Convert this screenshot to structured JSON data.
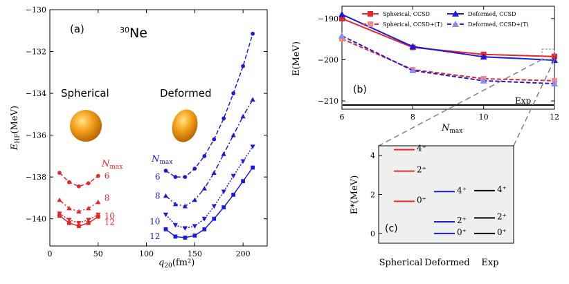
{
  "colors": {
    "red": "#e8262a",
    "blue": "#1a1adb",
    "lightred": "#f28b8b",
    "lightblue": "#8c8cf0",
    "black": "#000000",
    "grey": "#7a7a7a"
  },
  "chart_data": [
    {
      "id": "a",
      "type": "line",
      "panel_label": "(a)",
      "title_mass": "30",
      "title_element": "Ne",
      "xlabel": "q₂₀(fm²)",
      "ylabel": "E_HF(MeV)",
      "ylabel_main": "E",
      "ylabel_sub": "HF",
      "ylabel_unit": "(MeV)",
      "xlabel_main": "q",
      "xlabel_sub": "20",
      "xlabel_unit": "(fm²)",
      "xlim": [
        0,
        225
      ],
      "ylim": [
        -141.3,
        -130
      ],
      "x_ticks": [
        0,
        50,
        100,
        150,
        200
      ],
      "x_tick_labels": [
        "0",
        "50",
        "100",
        "150",
        "200"
      ],
      "y_ticks": [
        -140,
        -138,
        -136,
        -134,
        -132,
        -130
      ],
      "y_tick_labels": [
        "−140",
        "−138",
        "−136",
        "−134",
        "−132",
        "−130"
      ],
      "annotations": {
        "spherical": "Spherical",
        "deformed": "Deformed",
        "nmax_main": "N",
        "nmax_sub": "max"
      },
      "series": [
        {
          "name": "Spherical Nmax=6",
          "group": "spherical",
          "nmax": "6",
          "color": "red",
          "marker": "circle",
          "dash": "dashed",
          "x": [
            10,
            20,
            30,
            40,
            50
          ],
          "y": [
            -137.8,
            -138.25,
            -138.45,
            -138.3,
            -137.95
          ]
        },
        {
          "name": "Spherical Nmax=8",
          "group": "spherical",
          "nmax": "8",
          "color": "red",
          "marker": "triangle-up",
          "dash": "dashdot",
          "x": [
            10,
            20,
            30,
            40,
            50
          ],
          "y": [
            -139.1,
            -139.5,
            -139.65,
            -139.5,
            -139.2
          ]
        },
        {
          "name": "Spherical Nmax=10",
          "group": "spherical",
          "nmax": "10",
          "color": "red",
          "marker": "triangle-down",
          "dash": "dotted",
          "x": [
            10,
            20,
            30,
            40,
            50
          ],
          "y": [
            -139.75,
            -140.05,
            -140.2,
            -140.05,
            -139.8
          ]
        },
        {
          "name": "Spherical Nmax=12",
          "group": "spherical",
          "nmax": "12",
          "color": "red",
          "marker": "square",
          "dash": "solid",
          "x": [
            10,
            20,
            30,
            40,
            50
          ],
          "y": [
            -139.85,
            -140.2,
            -140.35,
            -140.2,
            -139.9
          ]
        },
        {
          "name": "Deformed Nmax=6",
          "group": "deformed",
          "nmax": "6",
          "color": "blue",
          "marker": "circle",
          "dash": "dashed",
          "x": [
            120,
            130,
            140,
            150,
            160,
            170,
            180,
            190,
            200,
            210
          ],
          "y": [
            -137.7,
            -138.0,
            -138.0,
            -137.6,
            -137.0,
            -136.2,
            -135.2,
            -134.0,
            -132.7,
            -131.15
          ]
        },
        {
          "name": "Deformed Nmax=8",
          "group": "deformed",
          "nmax": "8",
          "color": "blue",
          "marker": "triangle-up",
          "dash": "dashdot",
          "x": [
            120,
            130,
            140,
            150,
            160,
            170,
            180,
            190,
            200,
            210
          ],
          "y": [
            -138.9,
            -139.3,
            -139.4,
            -139.1,
            -138.55,
            -137.8,
            -136.9,
            -136.0,
            -135.1,
            -134.3
          ]
        },
        {
          "name": "Deformed Nmax=10",
          "group": "deformed",
          "nmax": "10",
          "color": "blue",
          "marker": "triangle-down",
          "dash": "dotted",
          "x": [
            120,
            130,
            140,
            150,
            160,
            170,
            180,
            190,
            200,
            210
          ],
          "y": [
            -139.8,
            -140.3,
            -140.45,
            -140.35,
            -140.0,
            -139.4,
            -138.7,
            -137.95,
            -137.25,
            -136.55
          ]
        },
        {
          "name": "Deformed Nmax=12",
          "group": "deformed",
          "nmax": "12",
          "color": "blue",
          "marker": "square",
          "dash": "solid",
          "x": [
            120,
            130,
            140,
            150,
            160,
            170,
            180,
            190,
            200,
            210
          ],
          "y": [
            -140.5,
            -140.85,
            -140.9,
            -140.8,
            -140.5,
            -140.0,
            -139.45,
            -138.85,
            -138.2,
            -137.55
          ]
        }
      ]
    },
    {
      "id": "b",
      "type": "line",
      "panel_label": "(b)",
      "xlabel": "N_max",
      "xlabel_main": "N",
      "xlabel_sub": "max",
      "ylabel": "E(MeV)",
      "xlim": [
        6,
        12
      ],
      "ylim": [
        -212,
        -187
      ],
      "x_ticks": [
        6,
        8,
        10,
        12
      ],
      "x_tick_labels": [
        "6",
        "8",
        "10",
        "12"
      ],
      "y_ticks": [
        -210,
        -200,
        -190
      ],
      "y_tick_labels": [
        "−210",
        "−200",
        "−190"
      ],
      "exp_label": "Exp",
      "exp_value": -211,
      "legend_position": "top",
      "series": [
        {
          "name": "Spherical, CCSD",
          "color": "red",
          "marker": "square",
          "dash": "solid",
          "x": [
            6,
            8,
            10,
            12
          ],
          "y": [
            -190,
            -197,
            -198.7,
            -199.2
          ]
        },
        {
          "name": "Deformed, CCSD",
          "color": "blue",
          "marker": "triangle-up",
          "dash": "solid",
          "x": [
            6,
            8,
            10,
            12
          ],
          "y": [
            -189,
            -196.8,
            -199.3,
            -200.1
          ]
        },
        {
          "name": "Spherical, CCSD+(T)",
          "color": "lightred",
          "marker": "square",
          "dash": "dashed",
          "x": [
            6,
            8,
            10,
            12
          ],
          "y": [
            -194.9,
            -202.4,
            -204.6,
            -205.1
          ]
        },
        {
          "name": "Deformed, CCSD+(T)",
          "color": "lightblue",
          "marker": "triangle-up",
          "dash": "dashed",
          "x": [
            6,
            8,
            10,
            12
          ],
          "y": [
            -194.2,
            -202.6,
            -205.1,
            -205.8
          ]
        }
      ]
    },
    {
      "id": "c",
      "type": "level_scheme",
      "panel_label": "(c)",
      "ylabel": "E*(MeV)",
      "ylim": [
        -0.5,
        4.5
      ],
      "y_ticks": [
        0,
        2,
        4
      ],
      "y_tick_labels": [
        "0",
        "2",
        "4"
      ],
      "categories": [
        "Spherical",
        "Deformed",
        "Exp"
      ],
      "levels": [
        {
          "column": "Spherical",
          "color": "red",
          "energy": 4.3,
          "label": "4⁺"
        },
        {
          "column": "Spherical",
          "color": "red",
          "energy": 3.2,
          "label": "2⁺"
        },
        {
          "column": "Spherical",
          "color": "red",
          "energy": 1.65,
          "label": "0⁺"
        },
        {
          "column": "Deformed",
          "color": "blue",
          "energy": 2.15,
          "label": "4⁺"
        },
        {
          "column": "Deformed",
          "color": "blue",
          "energy": 0.6,
          "label": "2⁺"
        },
        {
          "column": "Deformed",
          "color": "blue",
          "energy": 0.0,
          "label": "0⁺"
        },
        {
          "column": "Exp",
          "color": "black",
          "energy": 2.2,
          "label": "4⁺"
        },
        {
          "column": "Exp",
          "color": "black",
          "energy": 0.8,
          "label": "2⁺"
        },
        {
          "column": "Exp",
          "color": "black",
          "energy": 0.0,
          "label": "0⁺"
        }
      ]
    }
  ]
}
